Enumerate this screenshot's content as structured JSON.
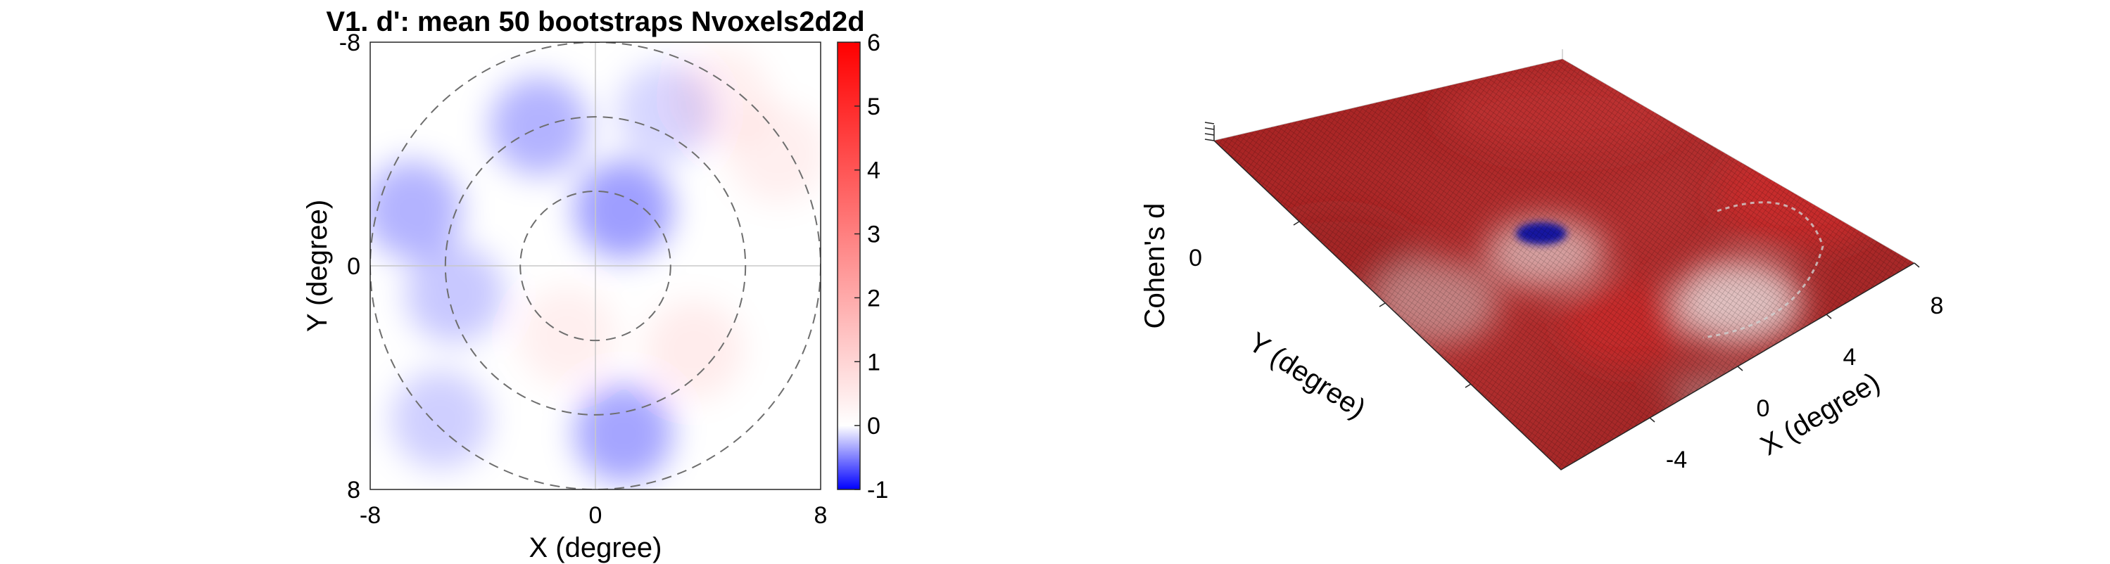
{
  "chart_data": [
    {
      "type": "heatmap",
      "title": "V1. d': mean 50 bootstraps Nvoxels2d2d",
      "xlabel": "X (degree)",
      "ylabel": "Y (degree)",
      "xlim": [
        -8,
        8
      ],
      "ylim": [
        -8,
        8
      ],
      "x_ticks": [
        "-8",
        "0",
        "8"
      ],
      "y_ticks": [
        "-8",
        "0",
        "8"
      ],
      "y_direction": "reversed",
      "polar_circles_radius": [
        2.67,
        5.33,
        8
      ],
      "crosshair": true,
      "colorbar": {
        "ticks": [
          "6",
          "5",
          "4",
          "3",
          "2",
          "1",
          "0",
          "-1"
        ],
        "clim": [
          -1,
          6
        ],
        "colormap": [
          "#0000ff",
          "#ffffff",
          "#ff0000"
        ]
      },
      "blobs": [
        {
          "x": 1.0,
          "y": -2.0,
          "value": -0.6
        },
        {
          "x": -2.0,
          "y": -5.0,
          "value": -0.45
        },
        {
          "x": 1.0,
          "y": 6.0,
          "value": -0.55
        },
        {
          "x": -6.5,
          "y": -2.0,
          "value": -0.45
        },
        {
          "x": -5.0,
          "y": 1.0,
          "value": -0.3
        },
        {
          "x": -5.5,
          "y": 5.5,
          "value": -0.25
        },
        {
          "x": 2.5,
          "y": -5.5,
          "value": -0.2
        },
        {
          "x": 3.5,
          "y": 3.0,
          "value": 0.25
        },
        {
          "x": 4.5,
          "y": -6.0,
          "value": 0.15
        },
        {
          "x": 6.5,
          "y": -4.0,
          "value": 0.15
        },
        {
          "x": -1.0,
          "y": 2.5,
          "value": 0.15
        }
      ]
    },
    {
      "type": "surface",
      "zlabel": "Cohen's d",
      "xlabel": "X (degree)",
      "ylabel": "Y (degree)",
      "x_ticks": [
        "-4",
        "0",
        "4",
        "8"
      ],
      "z_ticks": [
        "0"
      ]
    }
  ]
}
